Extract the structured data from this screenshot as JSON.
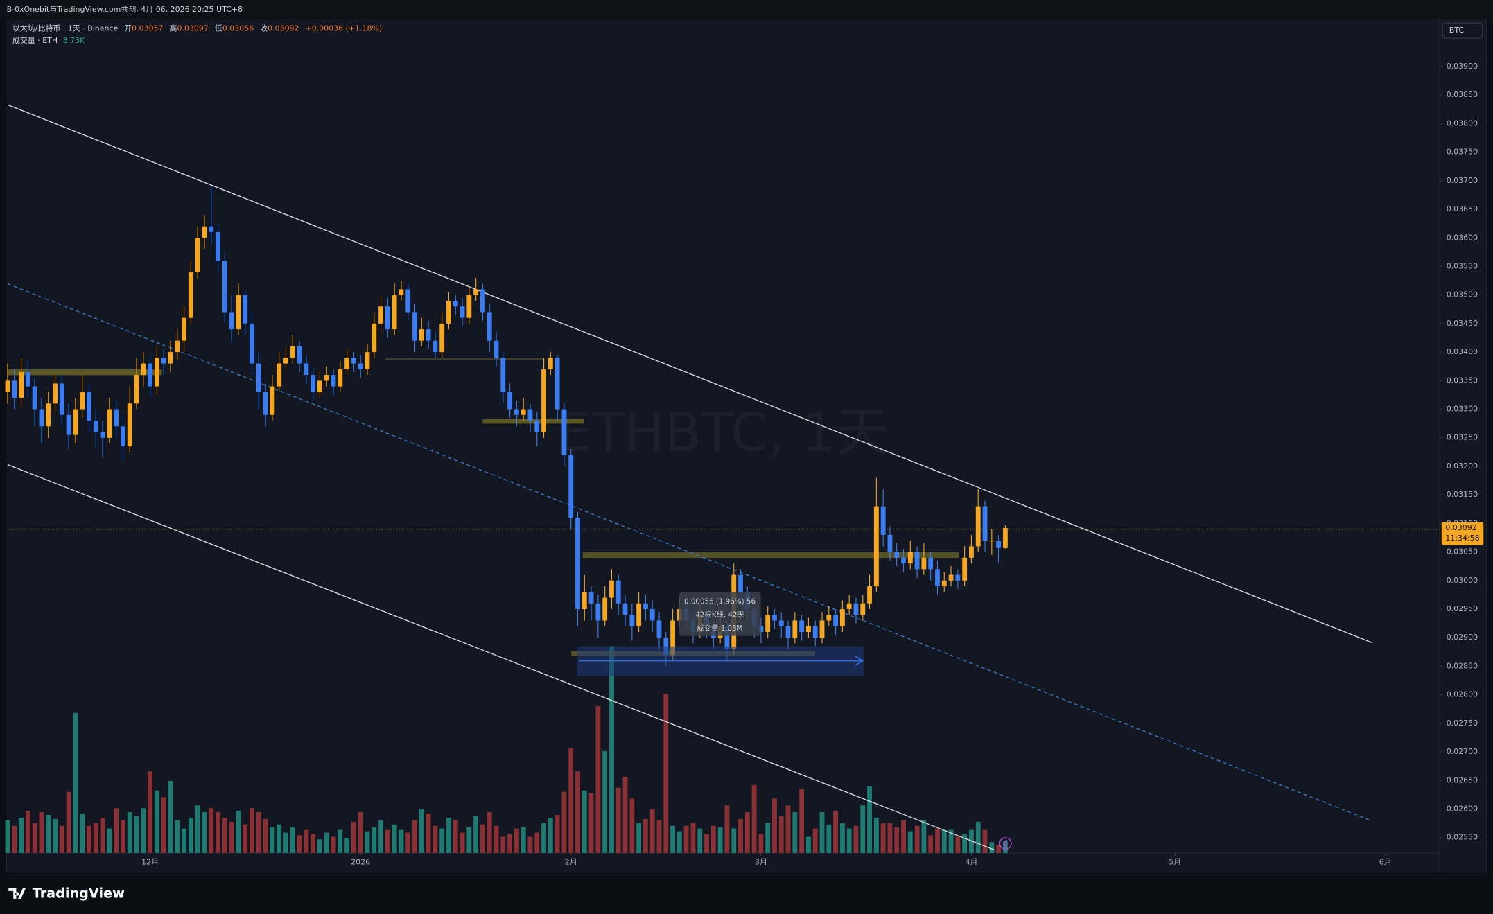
{
  "top_bar": "B-0xOnebit与TradingView.com共创, 4月 06, 2026 20:25 UTC+8",
  "header": {
    "symbol": "以太坊/比特币 · 1天 · Binance",
    "open_label": "开",
    "open": "0.03057",
    "high_label": "高",
    "high": "0.03097",
    "low_label": "低",
    "low": "0.03056",
    "close_label": "收",
    "close": "0.03092",
    "change": "+0.00036 (+1.18%)",
    "volume_title": "成交量 · ETH",
    "volume_value": "8.73K"
  },
  "currency_button": "BTC",
  "watermark": "ETHBTC, 1天",
  "price_label": "0.03092",
  "countdown": "11:34:58",
  "measure": {
    "line1": "0.00056 (1.96%) 56",
    "line2": "42根K线, 42天",
    "line3": "成交量 1.03M"
  },
  "logo": "TradingView",
  "chart_data": {
    "type": "candlestick",
    "up_color": "#f5a623",
    "down_color": "#3b7cf0",
    "volume_up_color": "#1f7a72",
    "volume_down_color": "#8a3136",
    "xlim": [
      0,
      211
    ],
    "ylim": [
      0.02523,
      0.03983
    ],
    "xticks": [
      {
        "value": 21,
        "label": "12月"
      },
      {
        "value": 52,
        "label": "2026"
      },
      {
        "value": 83,
        "label": "2月"
      },
      {
        "value": 111,
        "label": "3月"
      },
      {
        "value": 142,
        "label": "4月"
      },
      {
        "value": 172,
        "label": "5月"
      },
      {
        "value": 203,
        "label": "6月"
      }
    ],
    "yticks": [
      {
        "value": 0.0255,
        "label": "0.02550"
      },
      {
        "value": 0.026,
        "label": "0.02600"
      },
      {
        "value": 0.0265,
        "label": "0.02650"
      },
      {
        "value": 0.027,
        "label": "0.02700"
      },
      {
        "value": 0.0275,
        "label": "0.02750"
      },
      {
        "value": 0.028,
        "label": "0.02800"
      },
      {
        "value": 0.0285,
        "label": "0.02850"
      },
      {
        "value": 0.029,
        "label": "0.02900"
      },
      {
        "value": 0.0295,
        "label": "0.02950"
      },
      {
        "value": 0.03,
        "label": "0.03000"
      },
      {
        "value": 0.0305,
        "label": "0.03050"
      },
      {
        "value": 0.031,
        "label": "0.03100"
      },
      {
        "value": 0.0315,
        "label": "0.03150"
      },
      {
        "value": 0.032,
        "label": "0.03200"
      },
      {
        "value": 0.0325,
        "label": "0.03250"
      },
      {
        "value": 0.033,
        "label": "0.03300"
      },
      {
        "value": 0.0335,
        "label": "0.03350"
      },
      {
        "value": 0.034,
        "label": "0.03400"
      },
      {
        "value": 0.0345,
        "label": "0.03450"
      },
      {
        "value": 0.035,
        "label": "0.03500"
      },
      {
        "value": 0.0355,
        "label": "0.03550"
      },
      {
        "value": 0.036,
        "label": "0.03600"
      },
      {
        "value": 0.0365,
        "label": "0.03650"
      },
      {
        "value": 0.037,
        "label": "0.03700"
      },
      {
        "value": 0.0375,
        "label": "0.03750"
      },
      {
        "value": 0.038,
        "label": "0.03800"
      },
      {
        "value": 0.0385,
        "label": "0.03850"
      },
      {
        "value": 0.039,
        "label": "0.03900"
      }
    ],
    "candles": [
      [
        0.0333,
        0.0338,
        0.0331,
        0.0335
      ],
      [
        0.0335,
        0.0337,
        0.033,
        0.0332
      ],
      [
        0.0332,
        0.0339,
        0.03305,
        0.03365
      ],
      [
        0.03365,
        0.03385,
        0.0332,
        0.0334
      ],
      [
        0.0334,
        0.03355,
        0.0327,
        0.033
      ],
      [
        0.033,
        0.0332,
        0.0324,
        0.0327
      ],
      [
        0.0327,
        0.0333,
        0.0325,
        0.0331
      ],
      [
        0.0331,
        0.0336,
        0.03295,
        0.03345
      ],
      [
        0.03345,
        0.0336,
        0.0327,
        0.0329
      ],
      [
        0.0329,
        0.0331,
        0.0323,
        0.03255
      ],
      [
        0.03255,
        0.0332,
        0.0324,
        0.033
      ],
      [
        0.033,
        0.0336,
        0.03285,
        0.0333
      ],
      [
        0.0333,
        0.03345,
        0.0326,
        0.0328
      ],
      [
        0.0328,
        0.033,
        0.0323,
        0.0326
      ],
      [
        0.0326,
        0.0328,
        0.03215,
        0.0325
      ],
      [
        0.0325,
        0.0332,
        0.0324,
        0.033
      ],
      [
        0.033,
        0.03315,
        0.0325,
        0.0327
      ],
      [
        0.0327,
        0.0329,
        0.0321,
        0.03235
      ],
      [
        0.03235,
        0.0334,
        0.03225,
        0.0331
      ],
      [
        0.0331,
        0.0339,
        0.033,
        0.0336
      ],
      [
        0.0336,
        0.034,
        0.0334,
        0.0338
      ],
      [
        0.0338,
        0.03395,
        0.0332,
        0.0334
      ],
      [
        0.0334,
        0.0341,
        0.03325,
        0.0339
      ],
      [
        0.0339,
        0.03405,
        0.0336,
        0.0338
      ],
      [
        0.0338,
        0.0342,
        0.03365,
        0.034
      ],
      [
        0.034,
        0.0344,
        0.03385,
        0.0342
      ],
      [
        0.0342,
        0.0348,
        0.034,
        0.0346
      ],
      [
        0.0346,
        0.0356,
        0.0345,
        0.0354
      ],
      [
        0.0354,
        0.0362,
        0.0353,
        0.036
      ],
      [
        0.036,
        0.0364,
        0.0358,
        0.0362
      ],
      [
        0.0362,
        0.0369,
        0.0359,
        0.0361
      ],
      [
        0.0361,
        0.03625,
        0.0354,
        0.0356
      ],
      [
        0.0356,
        0.03575,
        0.0345,
        0.0347
      ],
      [
        0.0347,
        0.035,
        0.0342,
        0.0344
      ],
      [
        0.0344,
        0.0352,
        0.0343,
        0.035
      ],
      [
        0.035,
        0.0351,
        0.0343,
        0.0345
      ],
      [
        0.0345,
        0.0347,
        0.0336,
        0.0338
      ],
      [
        0.0338,
        0.034,
        0.033,
        0.0333
      ],
      [
        0.0333,
        0.03345,
        0.0327,
        0.0329
      ],
      [
        0.0329,
        0.0336,
        0.0328,
        0.0334
      ],
      [
        0.0334,
        0.034,
        0.0333,
        0.0338
      ],
      [
        0.0338,
        0.0341,
        0.0337,
        0.0339
      ],
      [
        0.0339,
        0.0343,
        0.0338,
        0.0341
      ],
      [
        0.0341,
        0.0342,
        0.03365,
        0.0338
      ],
      [
        0.0338,
        0.03395,
        0.03345,
        0.0336
      ],
      [
        0.0336,
        0.03375,
        0.03315,
        0.0333
      ],
      [
        0.0333,
        0.03365,
        0.0332,
        0.0335
      ],
      [
        0.0335,
        0.03375,
        0.0334,
        0.0336
      ],
      [
        0.0336,
        0.0337,
        0.03325,
        0.0334
      ],
      [
        0.0334,
        0.03385,
        0.0333,
        0.0337
      ],
      [
        0.0337,
        0.03405,
        0.0336,
        0.0339
      ],
      [
        0.0339,
        0.034,
        0.03365,
        0.0338
      ],
      [
        0.0338,
        0.03395,
        0.03355,
        0.0337
      ],
      [
        0.0337,
        0.03415,
        0.0336,
        0.034
      ],
      [
        0.034,
        0.0347,
        0.0339,
        0.0345
      ],
      [
        0.0345,
        0.035,
        0.0344,
        0.0348
      ],
      [
        0.0348,
        0.03495,
        0.03425,
        0.0344
      ],
      [
        0.0344,
        0.0352,
        0.0343,
        0.035
      ],
      [
        0.035,
        0.03525,
        0.0349,
        0.0351
      ],
      [
        0.0351,
        0.0352,
        0.03455,
        0.0347
      ],
      [
        0.0347,
        0.03485,
        0.034,
        0.0342
      ],
      [
        0.0342,
        0.0346,
        0.0341,
        0.0344
      ],
      [
        0.0344,
        0.03455,
        0.03405,
        0.0342
      ],
      [
        0.0342,
        0.03435,
        0.0339,
        0.034
      ],
      [
        0.034,
        0.0347,
        0.0339,
        0.0345
      ],
      [
        0.0345,
        0.03505,
        0.0344,
        0.0349
      ],
      [
        0.0349,
        0.035,
        0.03465,
        0.0348
      ],
      [
        0.0348,
        0.03495,
        0.03445,
        0.0346
      ],
      [
        0.0346,
        0.03515,
        0.0345,
        0.035
      ],
      [
        0.035,
        0.0353,
        0.0349,
        0.0351
      ],
      [
        0.0351,
        0.0352,
        0.03455,
        0.0347
      ],
      [
        0.0347,
        0.03485,
        0.034,
        0.0342
      ],
      [
        0.0342,
        0.03435,
        0.03375,
        0.0339
      ],
      [
        0.0339,
        0.034,
        0.0331,
        0.0333
      ],
      [
        0.0333,
        0.03345,
        0.03285,
        0.033
      ],
      [
        0.033,
        0.03315,
        0.0327,
        0.0329
      ],
      [
        0.0329,
        0.0332,
        0.0328,
        0.033
      ],
      [
        0.033,
        0.0331,
        0.0326,
        0.0328
      ],
      [
        0.0328,
        0.03295,
        0.03235,
        0.0326
      ],
      [
        0.0326,
        0.0339,
        0.0325,
        0.0337
      ],
      [
        0.0337,
        0.034,
        0.0336,
        0.0339
      ],
      [
        0.0339,
        0.03395,
        0.0328,
        0.033
      ],
      [
        0.033,
        0.0331,
        0.032,
        0.0322
      ],
      [
        0.0322,
        0.0323,
        0.0309,
        0.0311
      ],
      [
        0.0311,
        0.0312,
        0.0292,
        0.0295
      ],
      [
        0.0295,
        0.0301,
        0.0293,
        0.0298
      ],
      [
        0.0298,
        0.0299,
        0.0293,
        0.0296
      ],
      [
        0.0296,
        0.02975,
        0.029,
        0.0293
      ],
      [
        0.0293,
        0.0299,
        0.0292,
        0.0297
      ],
      [
        0.0297,
        0.0302,
        0.0295,
        0.03
      ],
      [
        0.03,
        0.0301,
        0.0294,
        0.0296
      ],
      [
        0.0296,
        0.02975,
        0.0292,
        0.0294
      ],
      [
        0.0294,
        0.0296,
        0.02895,
        0.0292
      ],
      [
        0.0292,
        0.0298,
        0.0291,
        0.0296
      ],
      [
        0.0296,
        0.02975,
        0.0293,
        0.0295
      ],
      [
        0.0295,
        0.02965,
        0.0291,
        0.0293
      ],
      [
        0.0293,
        0.02945,
        0.0288,
        0.029
      ],
      [
        0.029,
        0.0291,
        0.0285,
        0.0287
      ],
      [
        0.0287,
        0.0295,
        0.0286,
        0.0293
      ],
      [
        0.0293,
        0.0297,
        0.0292,
        0.0295
      ],
      [
        0.0295,
        0.0296,
        0.02915,
        0.0293
      ],
      [
        0.0293,
        0.02945,
        0.0289,
        0.0291
      ],
      [
        0.0291,
        0.0296,
        0.029,
        0.0294
      ],
      [
        0.0294,
        0.0295,
        0.029,
        0.0292
      ],
      [
        0.0292,
        0.0293,
        0.0288,
        0.029
      ],
      [
        0.029,
        0.02935,
        0.0289,
        0.0292
      ],
      [
        0.0292,
        0.0293,
        0.0286,
        0.0288
      ],
      [
        0.0288,
        0.0303,
        0.0287,
        0.0301
      ],
      [
        0.0301,
        0.0302,
        0.02965,
        0.0298
      ],
      [
        0.0298,
        0.0299,
        0.02935,
        0.0295
      ],
      [
        0.0295,
        0.02965,
        0.029,
        0.0292
      ],
      [
        0.0292,
        0.02935,
        0.0289,
        0.0291
      ],
      [
        0.0291,
        0.02955,
        0.029,
        0.0294
      ],
      [
        0.0294,
        0.0295,
        0.02915,
        0.0293
      ],
      [
        0.0293,
        0.02945,
        0.029,
        0.0292
      ],
      [
        0.0292,
        0.0293,
        0.0288,
        0.029
      ],
      [
        0.029,
        0.02945,
        0.0289,
        0.0293
      ],
      [
        0.0293,
        0.0294,
        0.02895,
        0.0291
      ],
      [
        0.0291,
        0.02935,
        0.029,
        0.0292
      ],
      [
        0.0292,
        0.0293,
        0.02885,
        0.029
      ],
      [
        0.029,
        0.02945,
        0.0289,
        0.0293
      ],
      [
        0.0293,
        0.02955,
        0.0292,
        0.0294
      ],
      [
        0.0294,
        0.0295,
        0.02905,
        0.0292
      ],
      [
        0.0292,
        0.02965,
        0.0291,
        0.0295
      ],
      [
        0.0295,
        0.02975,
        0.0294,
        0.0296
      ],
      [
        0.0296,
        0.0297,
        0.02925,
        0.0294
      ],
      [
        0.0294,
        0.02975,
        0.0293,
        0.0296
      ],
      [
        0.0296,
        0.0301,
        0.0295,
        0.0299
      ],
      [
        0.0299,
        0.0318,
        0.0298,
        0.0313
      ],
      [
        0.0313,
        0.0316,
        0.0306,
        0.0308
      ],
      [
        0.0308,
        0.03095,
        0.03035,
        0.0305
      ],
      [
        0.0305,
        0.03065,
        0.03025,
        0.0304
      ],
      [
        0.0304,
        0.03055,
        0.03015,
        0.0303
      ],
      [
        0.0303,
        0.0307,
        0.0302,
        0.0305
      ],
      [
        0.0305,
        0.0306,
        0.03005,
        0.0302
      ],
      [
        0.0302,
        0.03065,
        0.0301,
        0.0304
      ],
      [
        0.0304,
        0.0305,
        0.03,
        0.0302
      ],
      [
        0.0302,
        0.03035,
        0.02975,
        0.0299
      ],
      [
        0.0299,
        0.03015,
        0.0298,
        0.03
      ],
      [
        0.03,
        0.03025,
        0.0299,
        0.0301
      ],
      [
        0.0301,
        0.0302,
        0.02985,
        0.03
      ],
      [
        0.03,
        0.0306,
        0.0299,
        0.0304
      ],
      [
        0.0304,
        0.0308,
        0.0303,
        0.0306
      ],
      [
        0.0306,
        0.0316,
        0.0305,
        0.0313
      ],
      [
        0.0313,
        0.0314,
        0.0305,
        0.0307
      ],
      [
        0.0307,
        0.0309,
        0.03045,
        0.0307
      ],
      [
        0.0307,
        0.0308,
        0.0303,
        0.03057
      ],
      [
        0.03057,
        0.03097,
        0.03056,
        0.03092
      ]
    ],
    "volume": [
      24000,
      20000,
      26000,
      31000,
      22000,
      30000,
      28000,
      25000,
      20000,
      45000,
      103000,
      29000,
      20000,
      22000,
      26000,
      18000,
      33000,
      24000,
      30000,
      27000,
      33000,
      60000,
      46000,
      41000,
      53000,
      24000,
      18000,
      26000,
      35000,
      30000,
      33000,
      30000,
      26000,
      23000,
      31000,
      21000,
      33000,
      30000,
      25000,
      19000,
      21000,
      15000,
      19000,
      13000,
      17000,
      14000,
      10000,
      15000,
      12000,
      17000,
      11000,
      23000,
      30000,
      16000,
      19000,
      24000,
      17000,
      21000,
      17000,
      15000,
      24000,
      32000,
      29000,
      20000,
      18000,
      26000,
      24000,
      15000,
      19000,
      27000,
      21000,
      30000,
      20000,
      12000,
      14000,
      18000,
      19000,
      12000,
      15000,
      22000,
      26000,
      28000,
      45000,
      77000,
      60000,
      46000,
      44000,
      108000,
      75000,
      152000,
      48000,
      56000,
      40000,
      22000,
      25000,
      32000,
      24000,
      117000,
      20000,
      16000,
      20000,
      22000,
      18000,
      14000,
      20000,
      19000,
      35000,
      18000,
      25000,
      30000,
      50000,
      14000,
      22000,
      40000,
      27000,
      35000,
      30000,
      47000,
      12000,
      18000,
      30000,
      21000,
      31000,
      22000,
      18000,
      20000,
      35000,
      49000,
      26000,
      22000,
      22000,
      19000,
      24000,
      16000,
      20000,
      24000,
      13000,
      18000,
      17000,
      17000,
      12000,
      14000,
      17000,
      23000,
      17000,
      8000,
      6000,
      8730
    ]
  }
}
